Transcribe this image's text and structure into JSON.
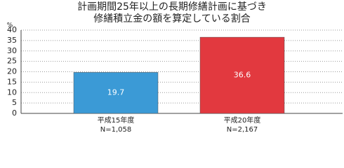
{
  "chart_data": {
    "type": "bar",
    "title": [
      "計画期間25年以上の長期修繕計画に基づき",
      "修繕積立金の額を算定している割合"
    ],
    "y_label": "%",
    "categories": [
      [
        "平成15年度",
        "N=1,058"
      ],
      [
        "平成20年度",
        "N=2,167"
      ]
    ],
    "values": [
      19.7,
      36.6
    ],
    "colors": [
      "#3b9ad6",
      "#e2393f"
    ],
    "ylim": [
      0,
      40
    ],
    "yticks": [
      0,
      5,
      10,
      15,
      20,
      25,
      30,
      35,
      40
    ],
    "grid": true
  }
}
